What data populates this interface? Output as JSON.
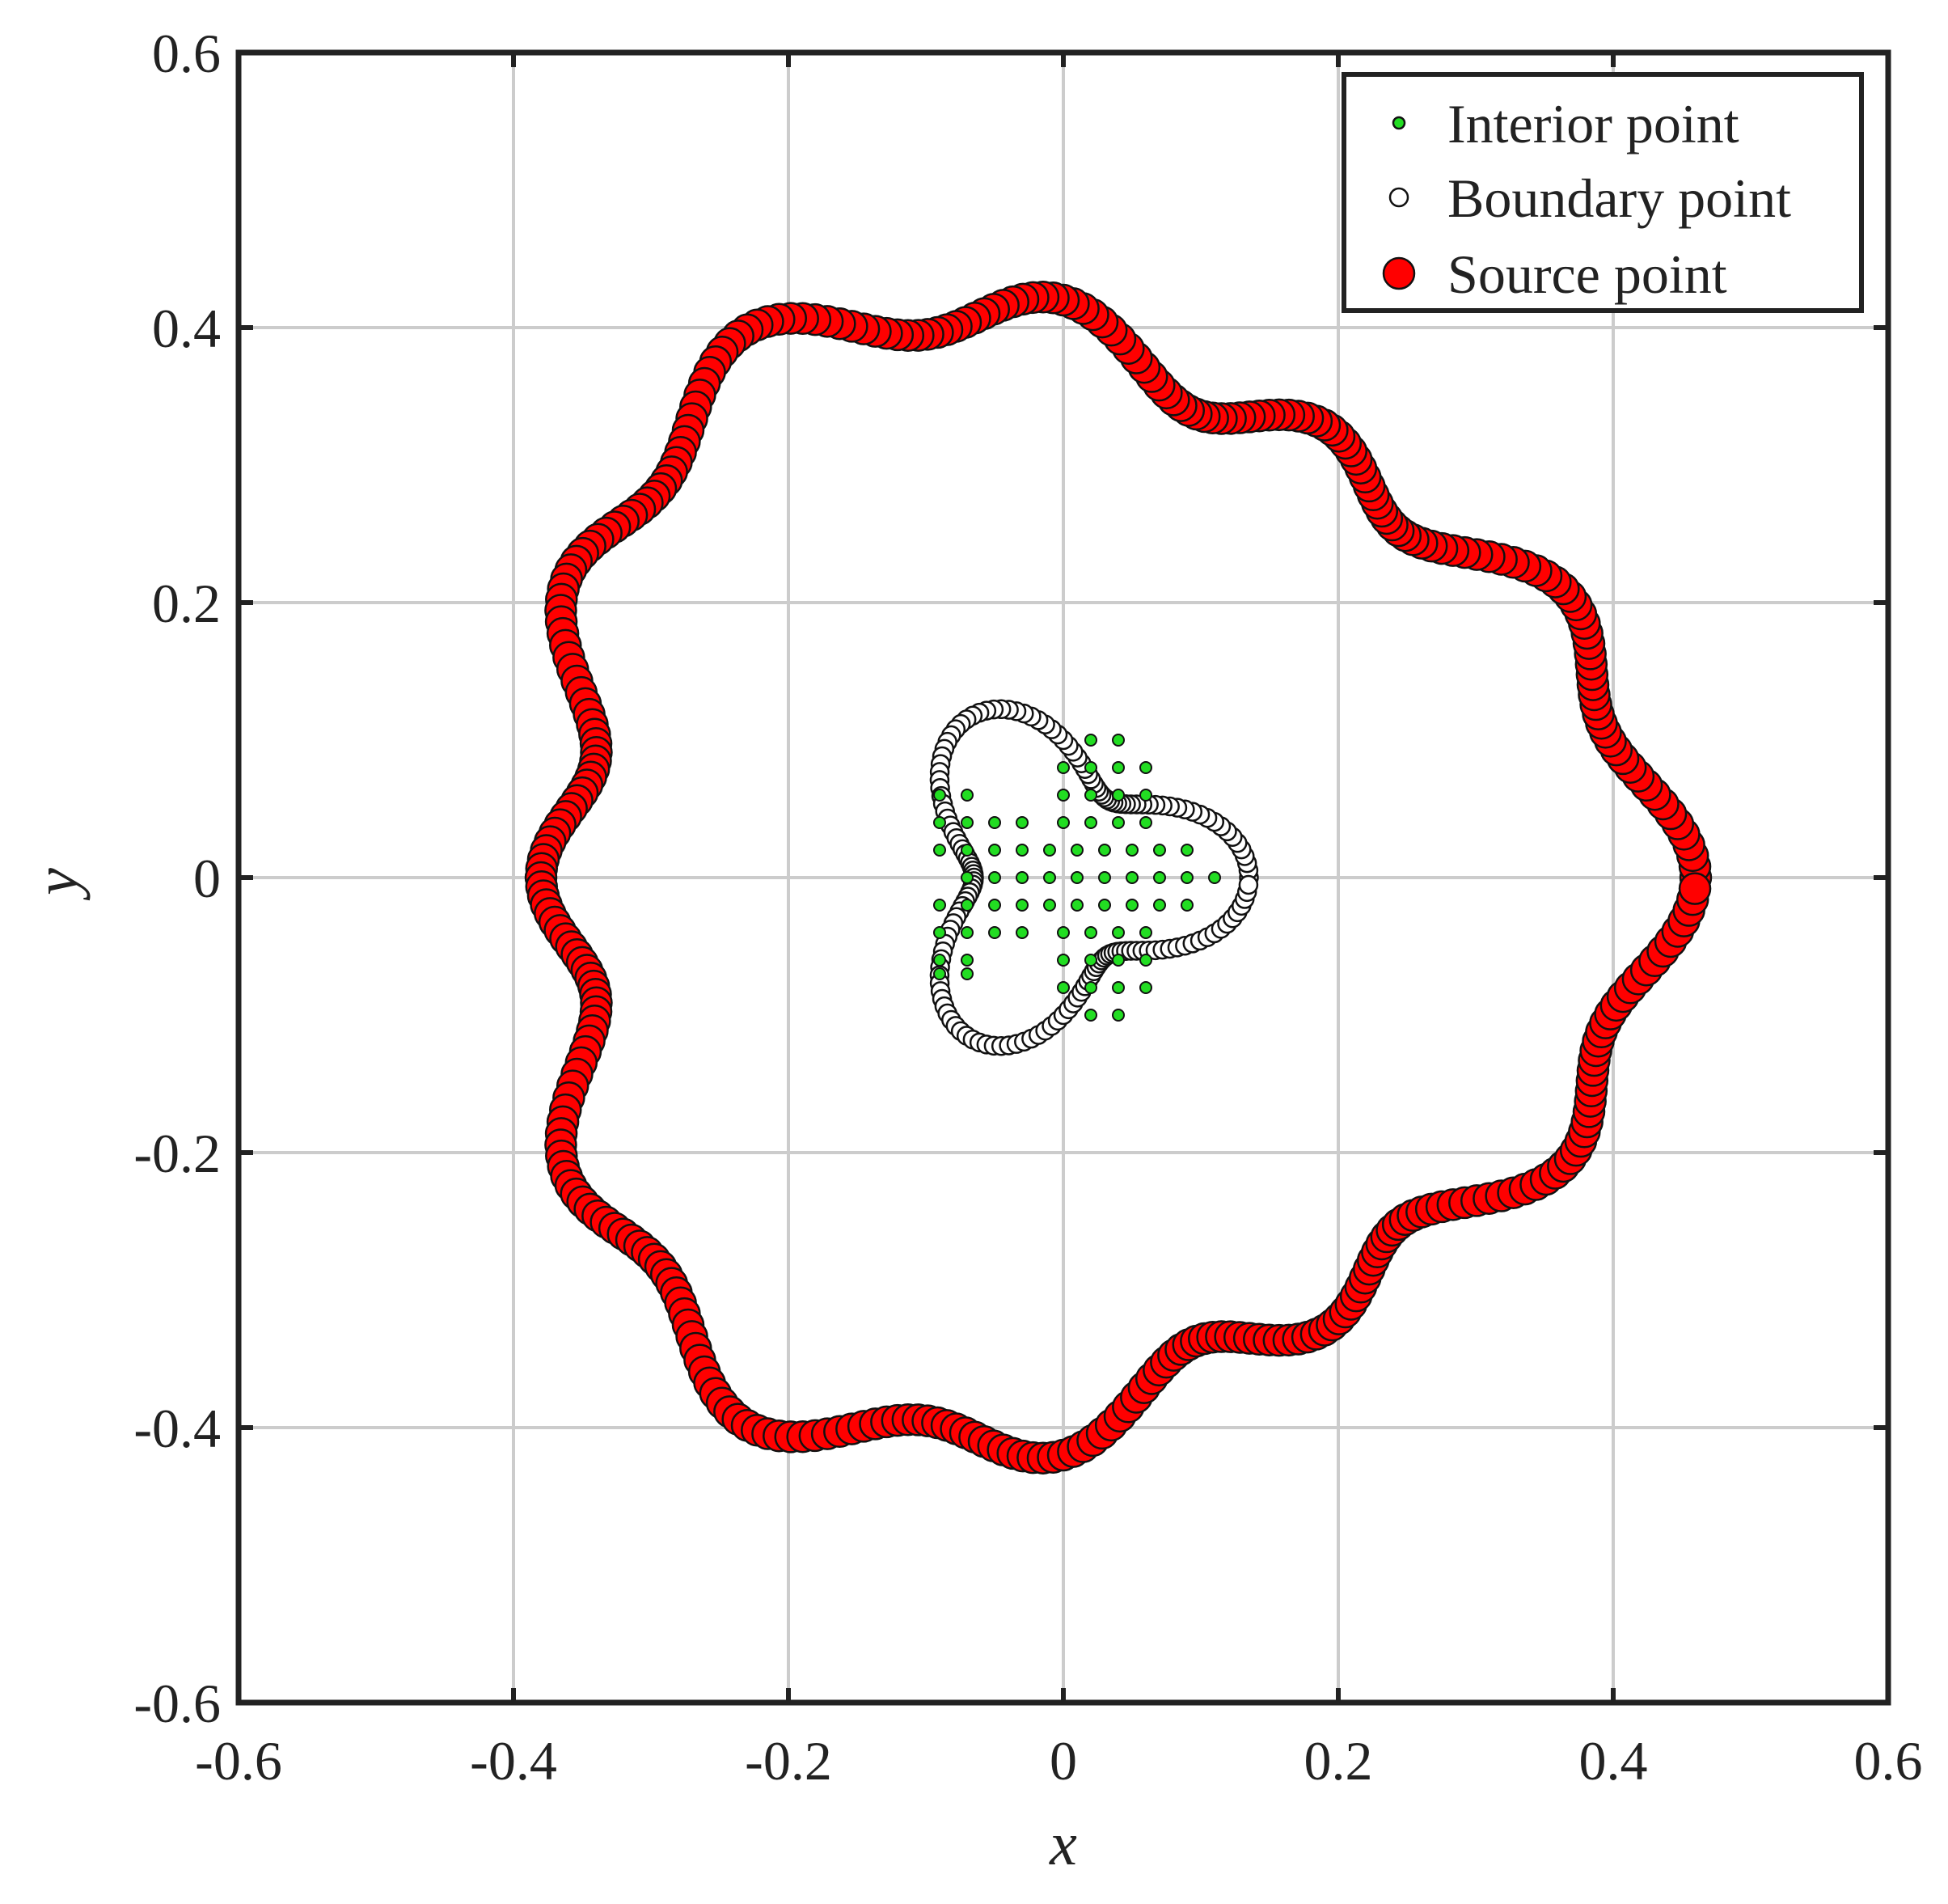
{
  "chart_data": {
    "type": "scatter",
    "title": "",
    "xlabel": "x",
    "ylabel": "y",
    "xlim": [
      -0.6,
      0.6
    ],
    "ylim": [
      -0.6,
      0.6
    ],
    "xticks": [
      -0.6,
      -0.4,
      -0.2,
      0,
      0.2,
      0.4,
      0.6
    ],
    "yticks": [
      -0.6,
      -0.4,
      -0.2,
      0,
      0.2,
      0.4,
      0.6
    ],
    "xtick_labels": [
      "-0.6",
      "-0.4",
      "-0.2",
      "0",
      "0.2",
      "0.4",
      "0.6"
    ],
    "ytick_labels": [
      "-0.6",
      "-0.4",
      "-0.2",
      "0",
      "0.2",
      "0.4",
      "0.6"
    ],
    "grid": true,
    "legend_position": "top-right",
    "colors": {
      "interior": "#22dd22",
      "boundary": "#ffffff",
      "source": "#ff0000",
      "edge": "#111111",
      "grid": "#cccccc"
    },
    "series": [
      {
        "name": "Interior point",
        "marker": "small-filled-circle",
        "points": [
          [
            0.02,
            0.1
          ],
          [
            0.04,
            0.1
          ],
          [
            0.0,
            0.08
          ],
          [
            0.02,
            0.08
          ],
          [
            0.04,
            0.08
          ],
          [
            0.06,
            0.08
          ],
          [
            -0.09,
            0.06
          ],
          [
            -0.07,
            0.06
          ],
          [
            0.0,
            0.06
          ],
          [
            0.02,
            0.06
          ],
          [
            0.04,
            0.06
          ],
          [
            0.06,
            0.06
          ],
          [
            -0.09,
            0.04
          ],
          [
            -0.07,
            0.04
          ],
          [
            -0.05,
            0.04
          ],
          [
            -0.03,
            0.04
          ],
          [
            0.0,
            0.04
          ],
          [
            0.02,
            0.04
          ],
          [
            0.04,
            0.04
          ],
          [
            0.06,
            0.04
          ],
          [
            -0.09,
            0.02
          ],
          [
            -0.07,
            0.02
          ],
          [
            -0.05,
            0.02
          ],
          [
            -0.03,
            0.02
          ],
          [
            -0.01,
            0.02
          ],
          [
            0.01,
            0.02
          ],
          [
            0.03,
            0.02
          ],
          [
            0.05,
            0.02
          ],
          [
            0.07,
            0.02
          ],
          [
            0.09,
            0.02
          ],
          [
            -0.07,
            0.0
          ],
          [
            -0.05,
            0.0
          ],
          [
            -0.03,
            0.0
          ],
          [
            -0.01,
            0.0
          ],
          [
            0.01,
            0.0
          ],
          [
            0.03,
            0.0
          ],
          [
            0.05,
            0.0
          ],
          [
            0.07,
            0.0
          ],
          [
            0.09,
            0.0
          ],
          [
            0.11,
            0.0
          ],
          [
            -0.09,
            -0.02
          ],
          [
            -0.07,
            -0.02
          ],
          [
            -0.05,
            -0.02
          ],
          [
            -0.03,
            -0.02
          ],
          [
            -0.01,
            -0.02
          ],
          [
            0.01,
            -0.02
          ],
          [
            0.03,
            -0.02
          ],
          [
            0.05,
            -0.02
          ],
          [
            0.07,
            -0.02
          ],
          [
            0.09,
            -0.02
          ],
          [
            -0.09,
            -0.04
          ],
          [
            -0.07,
            -0.04
          ],
          [
            -0.05,
            -0.04
          ],
          [
            -0.03,
            -0.04
          ],
          [
            0.0,
            -0.04
          ],
          [
            0.02,
            -0.04
          ],
          [
            0.04,
            -0.04
          ],
          [
            0.06,
            -0.04
          ],
          [
            -0.09,
            -0.06
          ],
          [
            -0.07,
            -0.06
          ],
          [
            0.0,
            -0.06
          ],
          [
            0.02,
            -0.06
          ],
          [
            0.04,
            -0.06
          ],
          [
            0.06,
            -0.06
          ],
          [
            -0.09,
            -0.07
          ],
          [
            -0.07,
            -0.07
          ],
          [
            0.0,
            -0.08
          ],
          [
            0.02,
            -0.08
          ],
          [
            0.04,
            -0.08
          ],
          [
            0.06,
            -0.08
          ],
          [
            0.02,
            -0.1
          ],
          [
            0.04,
            -0.1
          ]
        ]
      },
      {
        "name": "Boundary point",
        "marker": "hollow-circle",
        "curve": {
          "kind": "polar",
          "r0": 0.1,
          "amplitude": 0.35,
          "lobes": 3,
          "count": 160
        }
      },
      {
        "name": "Source point",
        "marker": "large-filled-circle",
        "curve": {
          "kind": "polar",
          "r0": 0.4,
          "amplitudes": [
            0.1,
            0.05
          ],
          "lobes": [
            3,
            12
          ],
          "count": 360
        }
      }
    ]
  }
}
